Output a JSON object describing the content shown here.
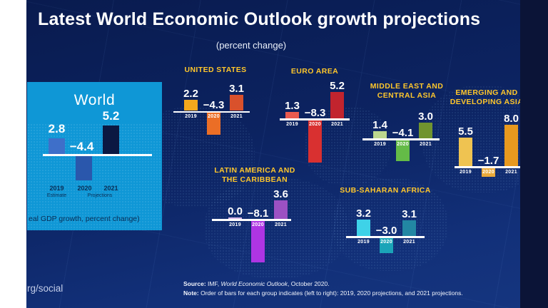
{
  "title": "Latest World Economic Outlook growth projections",
  "subtitle": "(percent change)",
  "years": [
    "2019",
    "2020",
    "2021"
  ],
  "colors": {
    "accent_yellow": "#FFC72C",
    "panel_blue": "#0F97D6",
    "slide_navy": "#0C2361",
    "right_band_navy": "#0B1437",
    "baseline_white": "#FFFFFF",
    "navy_text": "#0A2E57"
  },
  "world_panel": {
    "title": "World",
    "display": [
      "2.8",
      "−4.4",
      "5.2"
    ],
    "bar_colors": [
      "#3E6FC9",
      "#2A57AC",
      "#0B1842"
    ],
    "year_subs": [
      "Estimate",
      "Projections"
    ],
    "caption": "eal GDP growth, percent change)"
  },
  "regions": [
    {
      "id": "united-states",
      "name_lines": [
        "UNITED STATES"
      ],
      "display": [
        "2.2",
        "−4.3",
        "3.1"
      ],
      "bar_colors": [
        "#F4A81D",
        "#EB6E26",
        "#D9512C"
      ]
    },
    {
      "id": "euro-area",
      "name_lines": [
        "EURO AREA"
      ],
      "display": [
        "1.3",
        "−8.3",
        "5.2"
      ],
      "bar_colors": [
        "#E95B4F",
        "#D93030",
        "#C2242E"
      ]
    },
    {
      "id": "middle-east-and-central-asia",
      "name_lines": [
        "MIDDLE EAST AND",
        "CENTRAL ASIA"
      ],
      "display": [
        "1.4",
        "−4.1",
        "3.0"
      ],
      "bar_colors": [
        "#BCD78E",
        "#64BB47",
        "#70942F"
      ]
    },
    {
      "id": "emerging-and-developing-asia",
      "name_lines": [
        "EMERGING AND",
        "DEVELOPING ASIA"
      ],
      "display": [
        "5.5",
        "−1.7",
        "8.0"
      ],
      "bar_colors": [
        "#EFC351",
        "#E9A93B",
        "#E8991F"
      ]
    },
    {
      "id": "latin-america-and-the-caribbean",
      "name_lines": [
        "LATIN AMERICA AND",
        "THE CARIBBEAN"
      ],
      "display": [
        "0.0",
        "−8.1",
        "3.6"
      ],
      "bar_colors": [
        "#D9B8E8",
        "#AE35E3",
        "#9C51C3"
      ]
    },
    {
      "id": "sub-saharan-africa",
      "name_lines": [
        "SUB-SAHARAN AFRICA"
      ],
      "display": [
        "3.2",
        "−3.0",
        "3.1"
      ],
      "bar_colors": [
        "#3ED2E8",
        "#1BA4B8",
        "#2287A3"
      ]
    }
  ],
  "footer": {
    "social": "rg/social",
    "source_label": "Source:",
    "source_pre": "IMF, ",
    "source_italic": "World Economic Outlook",
    "source_post": ", October 2020.",
    "note_label": "Note:",
    "note_text": "Order of bars for each group indicates (left to right): 2019, 2020 projections, and 2021 projections."
  },
  "chart_data": {
    "type": "bar",
    "title": "Latest World Economic Outlook growth projections",
    "subtitle": "(percent change)",
    "unit": "real GDP growth, percent change",
    "categories": [
      "2019",
      "2020",
      "2021"
    ],
    "category_notes": [
      "2019 estimate",
      "2020 projections",
      "2021 projections"
    ],
    "series": [
      {
        "name": "World",
        "values": [
          2.8,
          -4.4,
          5.2
        ]
      },
      {
        "name": "United States",
        "values": [
          2.2,
          -4.3,
          3.1
        ]
      },
      {
        "name": "Euro Area",
        "values": [
          1.3,
          -8.3,
          5.2
        ]
      },
      {
        "name": "Middle East and Central Asia",
        "values": [
          1.4,
          -4.1,
          3.0
        ]
      },
      {
        "name": "Emerging and Developing Asia",
        "values": [
          5.5,
          -1.7,
          8.0
        ]
      },
      {
        "name": "Latin America and the Caribbean",
        "values": [
          0.0,
          -8.1,
          3.6
        ]
      },
      {
        "name": "Sub-Saharan Africa",
        "values": [
          3.2,
          -3.0,
          3.1
        ]
      }
    ],
    "baseline": 0,
    "grid": false,
    "legend_position": "none",
    "source": "IMF, World Economic Outlook, October 2020"
  }
}
